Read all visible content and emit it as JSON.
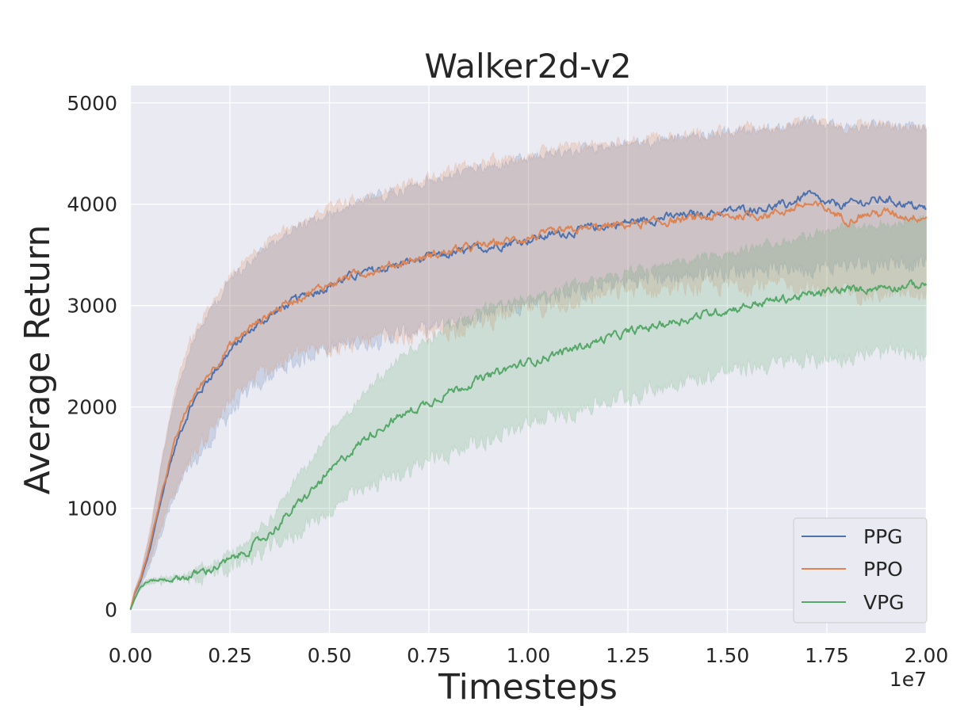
{
  "chart_data": {
    "type": "line",
    "title": "Walker2d-v2",
    "xlabel": "Timesteps",
    "ylabel": "Average Return",
    "x_offset_label": "1e7",
    "xlim": [
      -0.0011,
      2.0011
    ],
    "ylim": [
      -230,
      5170
    ],
    "x_ticks": [
      0,
      0.25,
      0.5,
      0.75,
      1.0,
      1.25,
      1.5,
      1.75,
      2.0
    ],
    "x_tick_labels": [
      "0.00",
      "0.25",
      "0.50",
      "0.75",
      "1.00",
      "1.25",
      "1.50",
      "1.75",
      "2.00"
    ],
    "y_ticks": [
      0,
      1000,
      2000,
      3000,
      4000,
      5000
    ],
    "y_tick_labels": [
      "0",
      "1000",
      "2000",
      "3000",
      "4000",
      "5000"
    ],
    "grid": true,
    "legend_position": "bottom-right",
    "series": [
      {
        "name": "PPG",
        "color": "#4c72b0",
        "x": [
          0,
          0.01,
          0.025,
          0.05,
          0.075,
          0.1,
          0.125,
          0.15,
          0.2,
          0.25,
          0.3,
          0.35,
          0.4,
          0.45,
          0.5,
          0.55,
          0.6,
          0.65,
          0.7,
          0.75,
          0.8,
          0.85,
          0.9,
          0.95,
          1.0,
          1.05,
          1.1,
          1.15,
          1.2,
          1.25,
          1.3,
          1.35,
          1.4,
          1.45,
          1.5,
          1.55,
          1.6,
          1.65,
          1.7,
          1.75,
          1.8,
          1.85,
          1.9,
          1.95,
          2.0
        ],
        "y": [
          0,
          150,
          280,
          600,
          1050,
          1450,
          1750,
          2000,
          2300,
          2550,
          2750,
          2900,
          3020,
          3120,
          3200,
          3280,
          3330,
          3380,
          3430,
          3470,
          3500,
          3540,
          3580,
          3620,
          3650,
          3690,
          3720,
          3760,
          3790,
          3820,
          3850,
          3870,
          3890,
          3910,
          3930,
          3950,
          3970,
          3990,
          4100,
          3990,
          4000,
          4020,
          4050,
          4000,
          3950
        ],
        "lower": [
          0,
          120,
          220,
          450,
          750,
          1000,
          1200,
          1400,
          1650,
          1950,
          2150,
          2300,
          2420,
          2520,
          2580,
          2620,
          2660,
          2700,
          2740,
          2780,
          2830,
          2880,
          2930,
          2980,
          3030,
          3080,
          3120,
          3160,
          3200,
          3240,
          3260,
          3280,
          3300,
          3320,
          3340,
          3350,
          3360,
          3370,
          3380,
          3390,
          3400,
          3410,
          3420,
          3420,
          3420
        ],
        "upper": [
          0,
          180,
          340,
          750,
          1350,
          1900,
          2300,
          2600,
          2950,
          3250,
          3450,
          3600,
          3720,
          3820,
          3900,
          3980,
          4040,
          4100,
          4160,
          4220,
          4270,
          4320,
          4370,
          4410,
          4450,
          4490,
          4520,
          4550,
          4580,
          4600,
          4620,
          4640,
          4660,
          4680,
          4700,
          4720,
          4740,
          4760,
          4800,
          4780,
          4760,
          4760,
          4780,
          4760,
          4760
        ]
      },
      {
        "name": "PPO",
        "color": "#dd8452",
        "x": [
          0,
          0.01,
          0.025,
          0.05,
          0.075,
          0.1,
          0.125,
          0.15,
          0.2,
          0.25,
          0.3,
          0.35,
          0.4,
          0.45,
          0.5,
          0.55,
          0.6,
          0.65,
          0.7,
          0.75,
          0.8,
          0.85,
          0.9,
          0.95,
          1.0,
          1.05,
          1.1,
          1.15,
          1.2,
          1.25,
          1.3,
          1.35,
          1.4,
          1.45,
          1.5,
          1.55,
          1.6,
          1.65,
          1.7,
          1.75,
          1.8,
          1.85,
          1.9,
          1.95,
          2.0
        ],
        "y": [
          0,
          160,
          300,
          650,
          1100,
          1500,
          1800,
          2050,
          2350,
          2600,
          2780,
          2920,
          3040,
          3130,
          3210,
          3290,
          3340,
          3390,
          3440,
          3490,
          3530,
          3570,
          3600,
          3640,
          3670,
          3700,
          3730,
          3760,
          3780,
          3800,
          3810,
          3830,
          3850,
          3870,
          3880,
          3890,
          3900,
          3940,
          4000,
          3950,
          3850,
          3900,
          3920,
          3880,
          3880
        ],
        "lower": [
          0,
          130,
          240,
          500,
          800,
          1050,
          1300,
          1500,
          1750,
          2050,
          2250,
          2380,
          2480,
          2550,
          2600,
          2620,
          2640,
          2660,
          2680,
          2700,
          2750,
          2800,
          2860,
          2910,
          2960,
          3000,
          3040,
          3080,
          3120,
          3150,
          3160,
          3170,
          3180,
          3190,
          3200,
          3200,
          3200,
          3200,
          3180,
          3150,
          3100,
          3100,
          3100,
          3100,
          3100
        ],
        "upper": [
          0,
          190,
          360,
          800,
          1400,
          1950,
          2350,
          2650,
          3000,
          3300,
          3500,
          3650,
          3780,
          3880,
          3960,
          4030,
          4090,
          4150,
          4210,
          4270,
          4320,
          4370,
          4420,
          4460,
          4490,
          4520,
          4550,
          4580,
          4600,
          4620,
          4640,
          4660,
          4680,
          4700,
          4720,
          4740,
          4760,
          4780,
          4820,
          4800,
          4780,
          4780,
          4800,
          4780,
          4760
        ]
      },
      {
        "name": "VPG",
        "color": "#55a868",
        "x": [
          0,
          0.01,
          0.025,
          0.04,
          0.06,
          0.1,
          0.15,
          0.2,
          0.25,
          0.3,
          0.35,
          0.4,
          0.45,
          0.5,
          0.55,
          0.6,
          0.65,
          0.7,
          0.75,
          0.8,
          0.85,
          0.9,
          0.95,
          1.0,
          1.05,
          1.1,
          1.15,
          1.2,
          1.25,
          1.3,
          1.35,
          1.4,
          1.45,
          1.5,
          1.55,
          1.6,
          1.65,
          1.7,
          1.75,
          1.8,
          1.85,
          1.9,
          1.95,
          2.0
        ],
        "y": [
          0,
          100,
          220,
          270,
          290,
          300,
          330,
          400,
          480,
          600,
          750,
          950,
          1150,
          1350,
          1550,
          1720,
          1850,
          1950,
          2050,
          2150,
          2230,
          2300,
          2380,
          2440,
          2500,
          2560,
          2620,
          2680,
          2730,
          2780,
          2830,
          2870,
          2920,
          2960,
          3000,
          3040,
          3070,
          3100,
          3130,
          3150,
          3170,
          3190,
          3200,
          3200
        ],
        "lower": [
          0,
          90,
          200,
          250,
          270,
          280,
          305,
          360,
          420,
          500,
          600,
          720,
          850,
          980,
          1100,
          1200,
          1300,
          1380,
          1460,
          1540,
          1620,
          1690,
          1760,
          1820,
          1880,
          1940,
          2000,
          2060,
          2110,
          2160,
          2210,
          2260,
          2300,
          2340,
          2380,
          2410,
          2440,
          2460,
          2480,
          2500,
          2510,
          2520,
          2520,
          2520
        ],
        "upper": [
          0,
          110,
          240,
          290,
          310,
          320,
          355,
          440,
          540,
          700,
          900,
          1180,
          1450,
          1720,
          1980,
          2200,
          2390,
          2540,
          2680,
          2800,
          2890,
          2970,
          3030,
          3080,
          3130,
          3180,
          3230,
          3270,
          3310,
          3350,
          3400,
          3440,
          3480,
          3520,
          3560,
          3600,
          3640,
          3680,
          3720,
          3760,
          3790,
          3820,
          3840,
          3850
        ]
      }
    ]
  }
}
